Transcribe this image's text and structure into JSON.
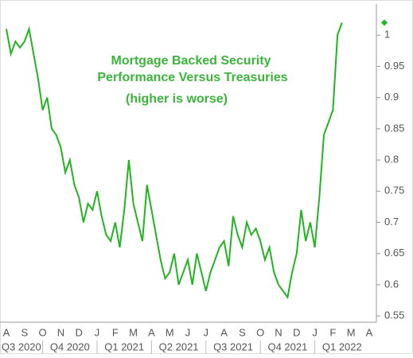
{
  "chart_data": {
    "type": "line",
    "annotations": [
      "Mortgage Backed Security",
      "Performance Versus Treasuries",
      "(higher is worse)"
    ],
    "categories": [
      "A",
      null,
      null,
      null,
      "S",
      null,
      null,
      null,
      "O",
      null,
      null,
      null,
      "N",
      null,
      null,
      null,
      "D",
      null,
      null,
      null,
      "J",
      null,
      null,
      null,
      "F",
      null,
      null,
      null,
      "M",
      null,
      null,
      null,
      "A",
      null,
      null,
      null,
      "M",
      null,
      null,
      null,
      "J",
      null,
      null,
      null,
      "J",
      null,
      null,
      null,
      "A",
      null,
      null,
      null,
      "S",
      null,
      null,
      null,
      "O",
      null,
      null,
      null,
      "N",
      null,
      null,
      null,
      "D",
      null,
      null,
      null,
      "J",
      null,
      null,
      null,
      "F",
      null,
      null,
      null,
      "M",
      null,
      null,
      null,
      "A"
    ],
    "quarters": [
      "Q3 2020",
      "Q4 2020",
      "Q1 2021",
      "Q2 2021",
      "Q3 2021",
      "Q4 2021",
      "Q1 2022"
    ],
    "series": [
      {
        "color": "#22b422",
        "values": [
          1.01,
          0.97,
          0.99,
          0.98,
          0.99,
          1.01,
          0.97,
          0.93,
          0.88,
          0.9,
          0.85,
          0.84,
          0.82,
          0.78,
          0.8,
          0.76,
          0.74,
          0.7,
          0.73,
          0.72,
          0.75,
          0.71,
          0.68,
          0.67,
          0.7,
          0.66,
          0.72,
          0.8,
          0.73,
          0.7,
          0.67,
          0.76,
          0.72,
          0.68,
          0.64,
          0.61,
          0.62,
          0.65,
          0.6,
          0.62,
          0.64,
          0.6,
          0.65,
          0.62,
          0.59,
          0.62,
          0.64,
          0.66,
          0.67,
          0.63,
          0.71,
          0.68,
          0.66,
          0.7,
          0.68,
          0.69,
          0.67,
          0.64,
          0.66,
          0.62,
          0.6,
          0.59,
          0.58,
          0.62,
          0.65,
          0.72,
          0.67,
          0.7,
          0.66,
          0.74,
          0.84,
          0.86,
          0.88,
          1.0,
          1.02,
          null,
          null,
          null,
          null,
          null,
          null
        ]
      }
    ],
    "ylim": [
      0.54,
      1.05
    ],
    "yticks": [
      0.55,
      0.6,
      0.65,
      0.7,
      0.75,
      0.8,
      0.85,
      0.9,
      0.95,
      1
    ]
  }
}
